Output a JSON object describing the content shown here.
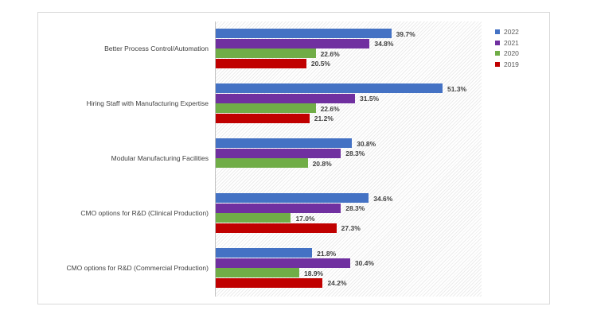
{
  "chart_data": {
    "type": "bar",
    "orientation": "horizontal",
    "title": "",
    "xlabel": "",
    "ylabel": "",
    "xlim": [
      0,
      60
    ],
    "grid": false,
    "legend_position": "top-right",
    "categories": [
      "Better Process Control/Automation",
      "Hiring Staff with Manufacturing Expertise",
      "Modular Manufacturing Facilities",
      "CMO options for R&D (Clinical Production)",
      "CMO options for R&D (Commercial Production)"
    ],
    "series": [
      {
        "name": "2022",
        "color": "#4472c4",
        "values": [
          39.7,
          51.3,
          30.8,
          34.6,
          21.8
        ],
        "labels": [
          "39.7%",
          "51.3%",
          "30.8%",
          "34.6%",
          "21.8%"
        ]
      },
      {
        "name": "2021",
        "color": "#7030a0",
        "values": [
          34.8,
          31.5,
          28.3,
          28.3,
          30.4
        ],
        "labels": [
          "34.8%",
          "31.5%",
          "28.3%",
          "28.3%",
          "30.4%"
        ]
      },
      {
        "name": "2020",
        "color": "#70ad47",
        "values": [
          22.6,
          22.6,
          20.8,
          17.0,
          18.9
        ],
        "labels": [
          "22.6%",
          "22.6%",
          "20.8%",
          "17.0%",
          "18.9%"
        ]
      },
      {
        "name": "2019",
        "color": "#c00000",
        "values": [
          20.5,
          21.2,
          null,
          27.3,
          24.2
        ],
        "labels": [
          "20.5%",
          "21.2%",
          null,
          "27.3%",
          "24.2%"
        ]
      }
    ]
  }
}
